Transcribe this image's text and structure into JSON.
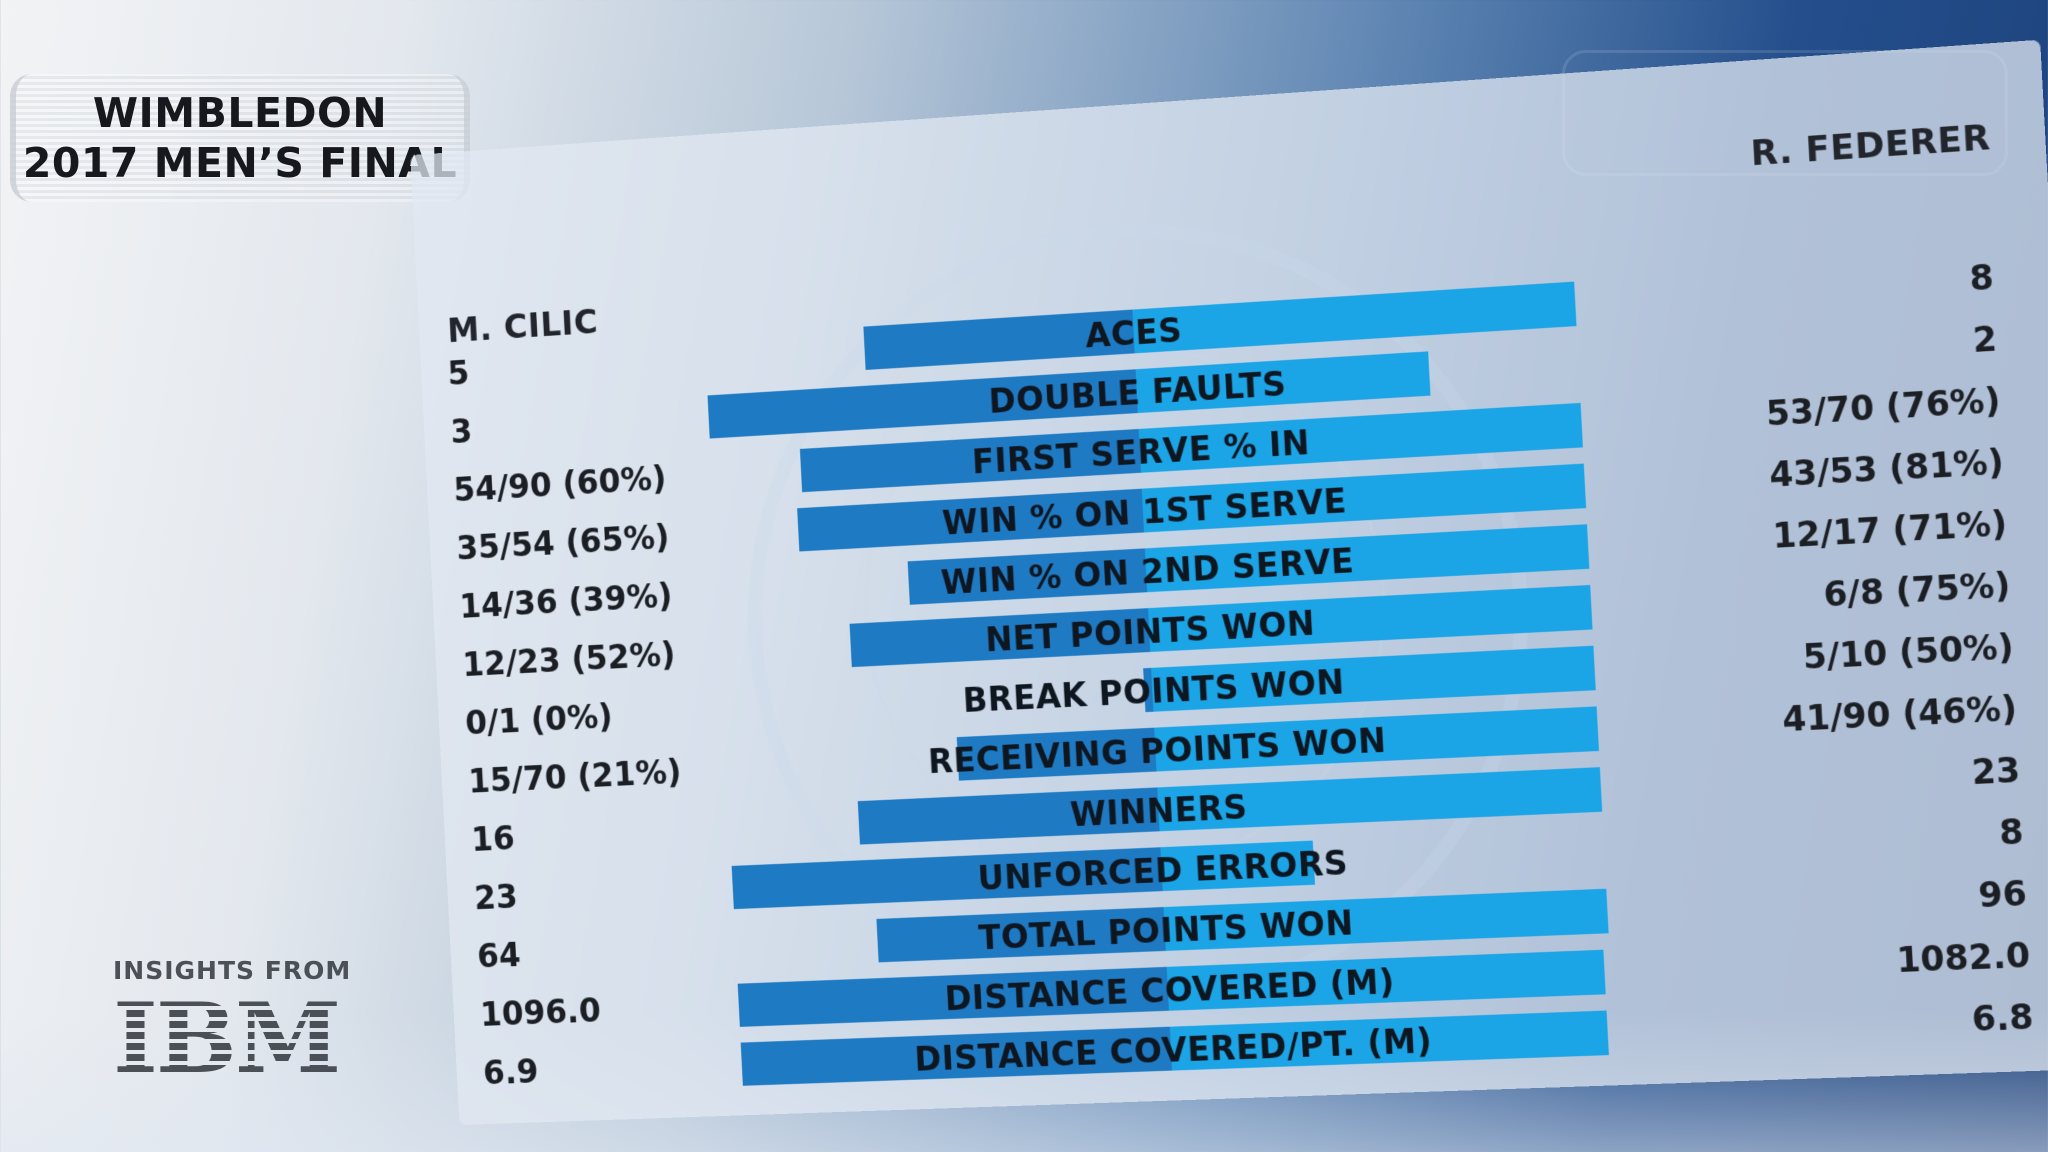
{
  "title": {
    "line1": "WIMBLEDON",
    "line2": "2017 MEN’S FINAL"
  },
  "branding": {
    "caption": "INSIGHTS FROM",
    "logo": "IBM"
  },
  "colors": {
    "left_bar": "#1f7ac4",
    "right_bar": "#1ba4e6"
  },
  "chart_data": {
    "type": "bar",
    "orientation": "horizontal-diverging",
    "left_player": "M. CILIC",
    "right_player": "R. FEDERER",
    "categories": [
      "ACES",
      "DOUBLE FAULTS",
      "FIRST SERVE % IN",
      "WIN % ON 1ST SERVE",
      "WIN % ON 2ND SERVE",
      "NET POINTS WON",
      "BREAK POINTS WON",
      "RECEIVING POINTS WON",
      "WINNERS",
      "UNFORCED ERRORS",
      "TOTAL POINTS WON",
      "DISTANCE COVERED (M)",
      "DISTANCE COVERED/PT. (M)"
    ],
    "left_labels": [
      "5",
      "3",
      "54/90 (60%)",
      "35/54 (65%)",
      "14/36 (39%)",
      "12/23 (52%)",
      "0/1 (0%)",
      "15/70 (21%)",
      "16",
      "23",
      "64",
      "1096.0",
      "6.9"
    ],
    "right_labels": [
      "8",
      "2",
      "53/70 (76%)",
      "43/53 (81%)",
      "12/17 (71%)",
      "6/8 (75%)",
      "5/10 (50%)",
      "41/90 (46%)",
      "23",
      "8",
      "96",
      "1082.0",
      "6.8"
    ],
    "series": [
      {
        "name": "M. CILIC",
        "values": [
          5,
          3,
          60,
          65,
          39,
          52,
          0,
          21,
          16,
          23,
          64,
          1096.0,
          6.9
        ]
      },
      {
        "name": "R. FEDERER",
        "values": [
          8,
          2,
          76,
          81,
          71,
          75,
          50,
          46,
          23,
          8,
          96,
          1082.0,
          6.8
        ]
      }
    ]
  }
}
